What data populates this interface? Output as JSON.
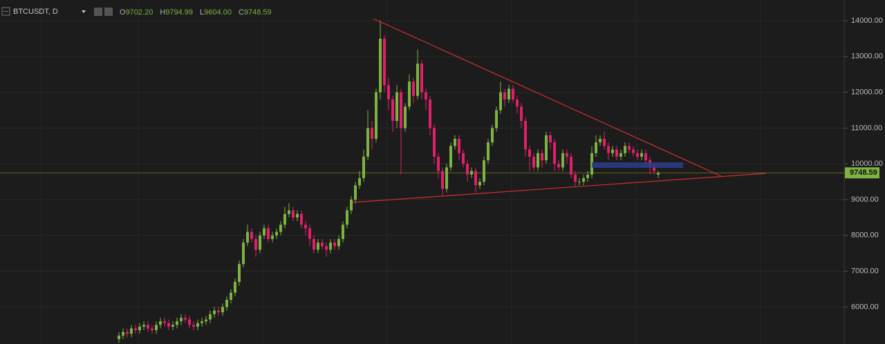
{
  "chart_data": {
    "type": "candlestick",
    "symbol": "BTCUSDT, D",
    "ohlc_labels": [
      {
        "name": "O",
        "value": "9702.20"
      },
      {
        "name": "H",
        "value": "9794.99"
      },
      {
        "name": "L",
        "value": "9604.00"
      },
      {
        "name": "C",
        "value": "9748.59"
      }
    ],
    "up_color": "#7cb342",
    "down_color": "#e0206a",
    "ylim": [
      4965,
      14580
    ],
    "yticks": [
      {
        "value": 6000,
        "label": "6000.00"
      },
      {
        "value": 7000,
        "label": "7000.00"
      },
      {
        "value": 8000,
        "label": "8000.00"
      },
      {
        "value": 9000,
        "label": "9000.00"
      },
      {
        "value": 10000,
        "label": "10000.00"
      },
      {
        "value": 11000,
        "label": "11000.00"
      },
      {
        "value": 12000,
        "label": "12000.00"
      },
      {
        "value": 13000,
        "label": "13000.00"
      },
      {
        "value": 14000,
        "label": "14000.00"
      }
    ],
    "last_price": {
      "value": 9748.59,
      "label": "9748.59"
    },
    "open": [
      5100,
      5200,
      5300,
      5250,
      5400,
      5350,
      5450,
      5500,
      5400,
      5350,
      5500,
      5600,
      5550,
      5450,
      5500,
      5600,
      5700,
      5650,
      5500,
      5450,
      5550,
      5600,
      5650,
      5800,
      5900,
      5850,
      6000,
      6200,
      6400,
      6700,
      7200,
      7800,
      8100,
      7900,
      7600,
      8000,
      8200,
      7900,
      8000,
      8100,
      8300,
      8600,
      8700,
      8500,
      8600,
      8300,
      8200,
      7900,
      7600,
      7800,
      7700,
      7600,
      7800,
      7700,
      7900,
      8300,
      8700,
      9000,
      9400,
      9600,
      10200,
      11000,
      10700,
      12000,
      13500,
      12200,
      11800,
      11200,
      12000,
      11000,
      11600,
      12300,
      11900,
      12800,
      12000,
      11800,
      11000,
      10200,
      9800,
      9300,
      9900,
      10500,
      10700,
      10300,
      10000,
      9700,
      9800,
      9400,
      9500,
      10100,
      10600,
      11000,
      11500,
      12000,
      11800,
      12100,
      11800,
      11600,
      11200,
      10400,
      10200,
      9900,
      10300,
      10100,
      10800,
      10600,
      10000,
      9900,
      10300,
      10200,
      9700,
      9500,
      9500,
      9600,
      9700,
      10300,
      10600,
      10700,
      10500,
      10300,
      10400,
      10200,
      10300,
      10500,
      10400,
      10300,
      10200,
      10300,
      10100,
      9900,
      9702.2
    ],
    "high": [
      5300,
      5400,
      5400,
      5500,
      5500,
      5550,
      5600,
      5600,
      5500,
      5600,
      5700,
      5700,
      5650,
      5600,
      5700,
      5800,
      5800,
      5750,
      5600,
      5650,
      5700,
      5750,
      5900,
      6000,
      6000,
      6100,
      6300,
      6500,
      6800,
      7300,
      7900,
      8300,
      8200,
      8000,
      8100,
      8300,
      8300,
      8100,
      8200,
      8400,
      8800,
      8900,
      8800,
      8700,
      8700,
      8400,
      8300,
      8000,
      7900,
      7900,
      7800,
      7900,
      7900,
      8000,
      8400,
      8800,
      9100,
      9500,
      9800,
      10400,
      11500,
      11200,
      12100,
      14000,
      13600,
      12400,
      11900,
      12200,
      12100,
      11700,
      12500,
      12400,
      13200,
      12900,
      12100,
      11900,
      11100,
      10300,
      9900,
      10000,
      10600,
      10800,
      10800,
      10400,
      10100,
      9900,
      9900,
      9600,
      10200,
      10700,
      11100,
      11600,
      12300,
      12100,
      12200,
      12200,
      11900,
      11700,
      11300,
      10500,
      10300,
      10400,
      10400,
      10900,
      10900,
      10700,
      10100,
      10400,
      10400,
      10300,
      9800,
      9600,
      9700,
      9800,
      10500,
      10800,
      10800,
      10900,
      10600,
      10500,
      10500,
      10400,
      10600,
      10600,
      10500,
      10400,
      10400,
      10400,
      10200,
      10000,
      9794.99
    ],
    "low": [
      5000,
      5100,
      5150,
      5150,
      5250,
      5250,
      5350,
      5300,
      5250,
      5250,
      5400,
      5450,
      5350,
      5350,
      5400,
      5500,
      5550,
      5400,
      5350,
      5350,
      5450,
      5500,
      5550,
      5700,
      5750,
      5750,
      5900,
      6100,
      6300,
      6600,
      7100,
      7700,
      7800,
      7400,
      7500,
      7900,
      7800,
      7800,
      7900,
      8000,
      8200,
      8500,
      8400,
      8400,
      8200,
      8000,
      7700,
      7500,
      7500,
      7600,
      7400,
      7500,
      7600,
      7600,
      7800,
      8200,
      8600,
      8900,
      9300,
      9500,
      10100,
      10400,
      10600,
      11800,
      12000,
      11500,
      10900,
      11000,
      9700,
      10900,
      11500,
      11700,
      11800,
      11800,
      11500,
      10800,
      10000,
      9600,
      9100,
      9200,
      9800,
      10400,
      10100,
      9900,
      9500,
      9600,
      9200,
      9300,
      9400,
      10000,
      10500,
      10900,
      11400,
      11600,
      11700,
      11700,
      11400,
      11000,
      10200,
      9800,
      9800,
      9800,
      9900,
      10000,
      10400,
      9800,
      9800,
      9800,
      10000,
      9600,
      9350,
      9400,
      9400,
      9500,
      9600,
      10200,
      10500,
      10400,
      10100,
      10200,
      10100,
      10100,
      10200,
      10300,
      10200,
      10100,
      10100,
      9900,
      9700,
      9700,
      9604
    ],
    "close": [
      5200,
      5300,
      5250,
      5400,
      5350,
      5450,
      5500,
      5400,
      5350,
      5500,
      5600,
      5550,
      5450,
      5500,
      5600,
      5700,
      5650,
      5500,
      5450,
      5550,
      5600,
      5650,
      5800,
      5900,
      5850,
      6000,
      6200,
      6400,
      6700,
      7200,
      7800,
      8100,
      7900,
      7600,
      8000,
      8200,
      7900,
      8000,
      8100,
      8300,
      8600,
      8700,
      8500,
      8600,
      8300,
      8200,
      7900,
      7600,
      7800,
      7700,
      7600,
      7800,
      7700,
      7900,
      8300,
      8700,
      9000,
      9400,
      9600,
      10200,
      11000,
      10700,
      12000,
      13500,
      12200,
      11800,
      11200,
      12000,
      11000,
      11600,
      12300,
      11900,
      12800,
      12000,
      11800,
      11000,
      10200,
      9800,
      9300,
      9900,
      10500,
      10700,
      10300,
      10000,
      9700,
      9800,
      9400,
      9500,
      10100,
      10600,
      11000,
      11500,
      12000,
      11800,
      12100,
      11800,
      11600,
      11200,
      10400,
      10200,
      9900,
      10300,
      10100,
      10800,
      10600,
      10000,
      9900,
      10300,
      10200,
      9700,
      9500,
      9500,
      9600,
      9700,
      10300,
      10600,
      10700,
      10500,
      10300,
      10400,
      10200,
      10300,
      10500,
      10400,
      10300,
      10200,
      10300,
      10100,
      9900,
      9800,
      9748.59
    ]
  }
}
